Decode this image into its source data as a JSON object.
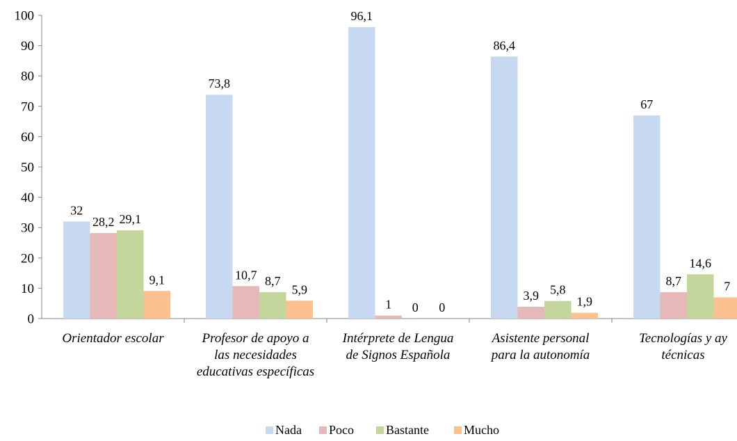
{
  "chart_data": {
    "type": "bar",
    "categories": [
      [
        "Orientador escolar"
      ],
      [
        "Profesor de apoyo a",
        "las necesidades",
        "educativas específicas"
      ],
      [
        "Intérprete de Lengua",
        "de Signos Española"
      ],
      [
        "Asistente personal",
        "para la autonomía"
      ],
      [
        "Tecnologías y ay",
        "técnicas"
      ]
    ],
    "series": [
      {
        "name": "Nada",
        "color": "#c6d9f1",
        "values": [
          32,
          73.8,
          96.1,
          86.4,
          67
        ]
      },
      {
        "name": "Poco",
        "color": "#e6b9b8",
        "values": [
          28.2,
          10.7,
          1,
          3.9,
          8.7
        ]
      },
      {
        "name": "Bastante",
        "color": "#c3d69b",
        "values": [
          29.1,
          8.7,
          0,
          5.8,
          14.6
        ]
      },
      {
        "name": "Mucho",
        "color": "#fac090",
        "values": [
          9.1,
          5.9,
          0,
          1.9,
          7
        ]
      }
    ],
    "data_labels": [
      [
        "32",
        "28,2",
        "29,1",
        "9,1"
      ],
      [
        "73,8",
        "10,7",
        "8,7",
        "5,9"
      ],
      [
        "96,1",
        "1",
        "0",
        "0"
      ],
      [
        "86,4",
        "3,9",
        "5,8",
        "1,9"
      ],
      [
        "67",
        "8,7",
        "14,6",
        "7"
      ]
    ],
    "ylim": [
      0,
      100
    ],
    "yticks": [
      "0",
      "10",
      "20",
      "30",
      "40",
      "50",
      "60",
      "70",
      "80",
      "90",
      "100"
    ],
    "grid": false,
    "legend": "bottom"
  }
}
